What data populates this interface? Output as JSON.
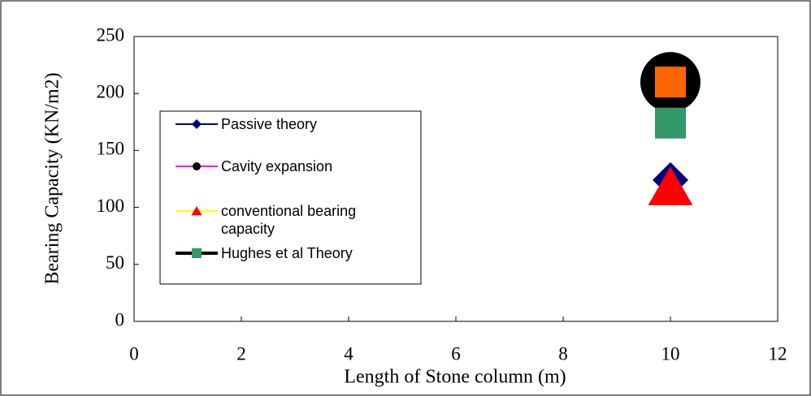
{
  "chart_data": {
    "type": "scatter",
    "xlabel": "Length of Stone column (m)",
    "ylabel": "Bearing Capacity (KN/m2)",
    "xlim": [
      0,
      12
    ],
    "xticks": [
      0,
      2,
      4,
      6,
      8,
      10,
      12
    ],
    "ylim": [
      0,
      250
    ],
    "yticks": [
      0,
      50,
      100,
      150,
      200,
      250
    ],
    "series": [
      {
        "name": "Passive theory",
        "color": "#000080",
        "line_color": "#000080",
        "marker": "diamond",
        "x": [
          10
        ],
        "values": [
          124
        ]
      },
      {
        "name": "Cavity expansion",
        "color": "#000000",
        "line_color": "#ff00ff",
        "marker": "circle",
        "x": [
          10
        ],
        "values": [
          210
        ]
      },
      {
        "name": "conventional bearing capacity",
        "color": "#ff0000",
        "line_color": "#ffff00",
        "marker": "triangle",
        "x": [
          10
        ],
        "values": [
          118
        ]
      },
      {
        "name": "Hughes et al Theory",
        "color": "#339966",
        "line_color": "#000000",
        "marker": "square",
        "x": [
          10
        ],
        "values": [
          174
        ]
      },
      {
        "color": "#ff6600",
        "marker": "square",
        "x": [
          10
        ],
        "values": [
          210
        ]
      }
    ]
  }
}
